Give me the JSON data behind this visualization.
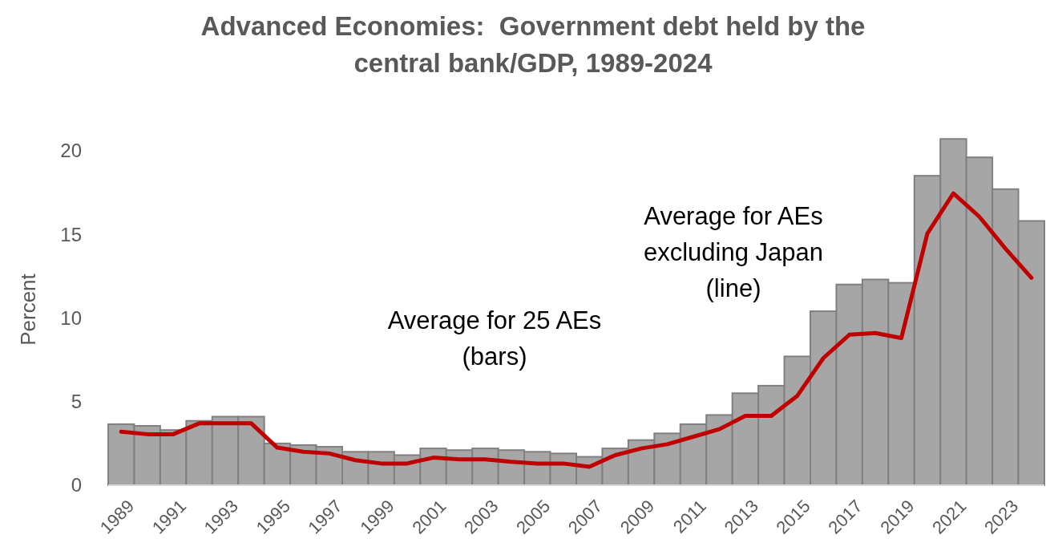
{
  "chart_data": {
    "type": "bar",
    "title": "Advanced Economies:  Government debt held by the\ncentral bank/GDP, 1989-2024",
    "ylabel": "Percent",
    "categories": [
      "1989",
      null,
      "1991",
      null,
      "1993",
      null,
      "1995",
      null,
      "1997",
      null,
      "1999",
      null,
      "2001",
      null,
      "2003",
      null,
      "2005",
      null,
      "2007",
      null,
      "2009",
      null,
      "2011",
      null,
      "2013",
      null,
      "2015",
      null,
      "2017",
      null,
      "2019",
      null,
      "2021",
      null,
      "2023",
      null
    ],
    "series": [
      {
        "color": "#a6a6a6",
        "values": [
          3.65,
          3.55,
          3.3,
          3.85,
          4.1,
          4.1,
          2.5,
          2.4,
          2.3,
          2.0,
          2.0,
          1.8,
          2.2,
          2.1,
          2.2,
          2.1,
          2.0,
          1.9,
          1.7,
          2.2,
          2.7,
          3.1,
          3.65,
          4.2,
          5.5,
          5.95,
          7.7,
          10.4,
          12.0,
          12.3,
          12.1,
          18.5,
          20.7,
          19.6,
          17.7,
          15.8
        ]
      },
      {
        "type": "line",
        "color": "#c00000",
        "values": [
          3.2,
          3.05,
          3.05,
          3.7,
          3.7,
          3.7,
          2.25,
          2.0,
          1.9,
          1.5,
          1.3,
          1.3,
          1.65,
          1.55,
          1.55,
          1.4,
          1.3,
          1.3,
          1.1,
          1.8,
          2.2,
          2.45,
          2.9,
          3.35,
          4.15,
          4.15,
          5.35,
          7.6,
          9.0,
          9.1,
          8.8,
          15.05,
          17.45,
          16.05,
          14.15,
          12.4
        ]
      }
    ],
    "ylim": [
      0,
      21
    ],
    "yticks": [
      0,
      5,
      10,
      15,
      20
    ],
    "grid": false,
    "annotations": [
      "Average for 25 AEs\n(bars)",
      "Average for AEs\nexcluding Japan\n(line)"
    ]
  }
}
